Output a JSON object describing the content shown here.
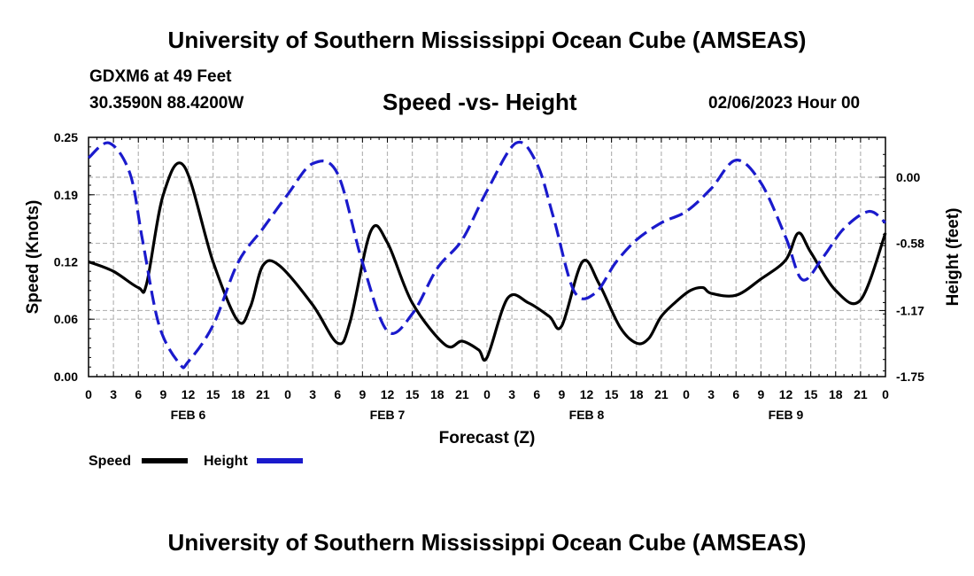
{
  "header": {
    "title": "University of Southern Mississippi Ocean Cube (AMSEAS)",
    "station": "GDXM6 at 49 Feet",
    "coords": "30.3590N  88.4200W",
    "chart_title": "Speed -vs- Height",
    "datetime": "02/06/2023 Hour 00"
  },
  "footer": {
    "title": "University of Southern Mississippi Ocean Cube (AMSEAS)"
  },
  "chart_data": {
    "type": "line",
    "title": "Speed -vs- Height",
    "xlabel": "Forecast (Z)",
    "ylabel": "Speed (Knots)",
    "y2label": "Height (feet)",
    "x_range_hours": [
      0,
      96
    ],
    "x_tick_labels": [
      "0",
      "3",
      "6",
      "9",
      "12",
      "15",
      "18",
      "21",
      "0",
      "3",
      "6",
      "9",
      "12",
      "15",
      "18",
      "21",
      "0",
      "3",
      "6",
      "9",
      "12",
      "15",
      "18",
      "21",
      "0",
      "3",
      "6",
      "9",
      "12",
      "15",
      "18",
      "21",
      "0"
    ],
    "day_labels": [
      {
        "hour": 12,
        "label": "FEB 6"
      },
      {
        "hour": 36,
        "label": "FEB 7"
      },
      {
        "hour": 60,
        "label": "FEB 8"
      },
      {
        "hour": 84,
        "label": "FEB 9"
      }
    ],
    "ylim": [
      0,
      0.25
    ],
    "y_ticks": [
      "0.00",
      "0.06",
      "0.12",
      "0.19",
      "0.25"
    ],
    "y2lim": [
      -1.75,
      0.35
    ],
    "y2_ticks": [
      "0.00",
      "-0.58",
      "-1.17",
      "-1.75"
    ],
    "legend": [
      "Speed",
      "Height"
    ],
    "grid": true,
    "series": [
      {
        "name": "Speed",
        "axis": "left",
        "color": "#000000",
        "dash": "solid",
        "x": [
          0,
          3,
          6,
          7,
          9,
          11.5,
          15,
          18,
          19.5,
          21,
          23,
          27,
          30,
          31.5,
          34,
          36,
          39,
          43,
          45,
          47,
          48,
          50.5,
          53,
          55.5,
          57,
          59.5,
          61.5,
          64,
          66,
          67.5,
          69,
          71,
          72.5,
          74,
          75,
          78,
          81,
          84,
          85.5,
          87,
          90,
          93,
          96
        ],
        "values": [
          0.12,
          0.11,
          0.093,
          0.097,
          0.19,
          0.22,
          0.12,
          0.058,
          0.073,
          0.116,
          0.116,
          0.075,
          0.035,
          0.057,
          0.152,
          0.14,
          0.077,
          0.033,
          0.037,
          0.028,
          0.02,
          0.082,
          0.077,
          0.063,
          0.053,
          0.12,
          0.097,
          0.052,
          0.035,
          0.04,
          0.063,
          0.08,
          0.09,
          0.093,
          0.087,
          0.085,
          0.102,
          0.122,
          0.15,
          0.13,
          0.09,
          0.08,
          0.15
        ]
      },
      {
        "name": "Height",
        "axis": "right",
        "color": "#1a1acc",
        "dash": "dashed",
        "x": [
          0,
          2.5,
          5,
          6.5,
          8.5,
          11,
          12,
          15,
          18,
          21,
          24,
          27,
          30,
          33,
          36,
          39,
          42,
          45,
          48,
          51.5,
          54,
          56,
          58.5,
          61,
          63.5,
          66,
          69,
          72,
          75,
          78,
          81,
          84,
          86,
          88.5,
          91,
          94,
          96
        ],
        "values": [
          0.17,
          0.3,
          0.03,
          -0.55,
          -1.3,
          -1.64,
          -1.62,
          -1.3,
          -0.75,
          -0.45,
          -0.15,
          0.12,
          0.03,
          -0.75,
          -1.35,
          -1.2,
          -0.8,
          -0.55,
          -0.12,
          0.3,
          0.12,
          -0.35,
          -1.0,
          -1.02,
          -0.75,
          -0.55,
          -0.4,
          -0.3,
          -0.1,
          0.15,
          -0.05,
          -0.53,
          -0.9,
          -0.7,
          -0.45,
          -0.3,
          -0.4
        ]
      }
    ]
  }
}
